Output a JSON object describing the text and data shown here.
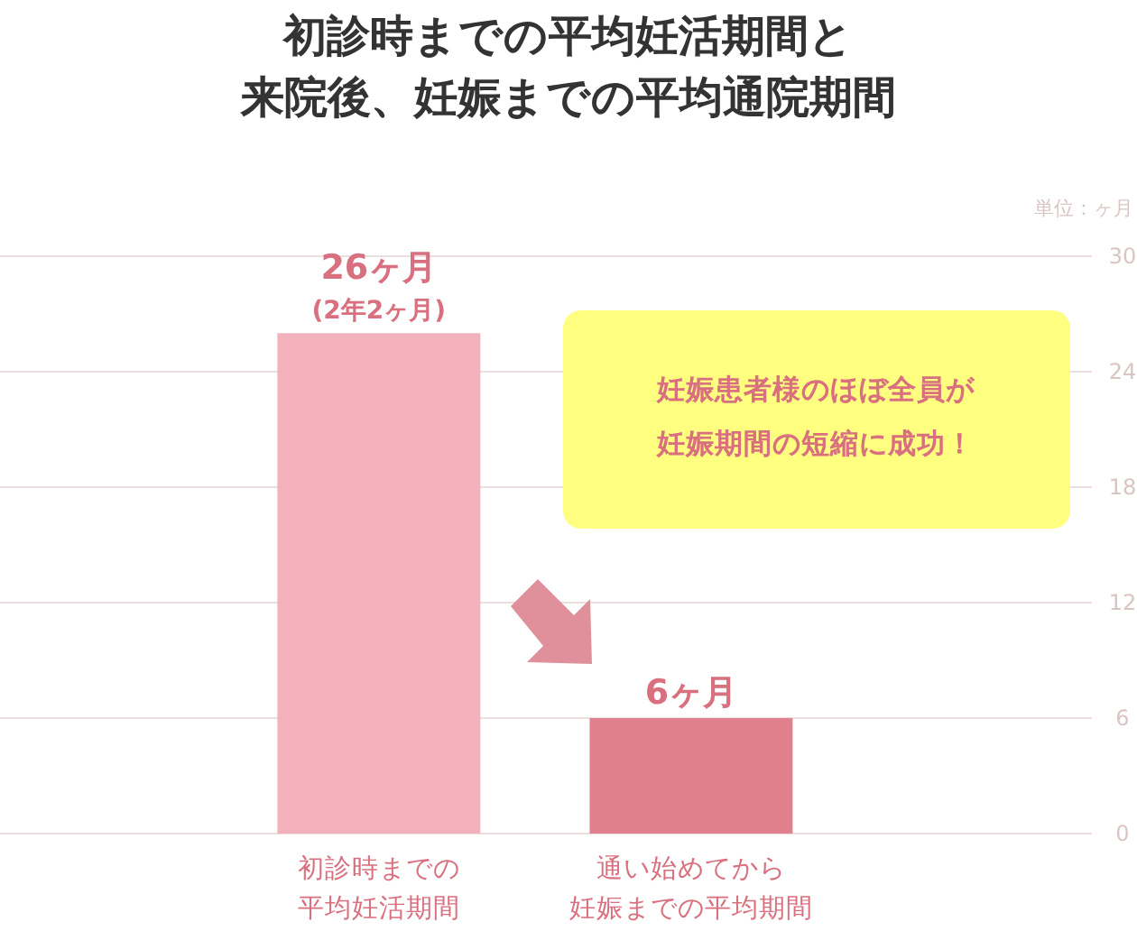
{
  "chart_data": {
    "type": "bar",
    "title": "初診時までの平均妊活期間と来院後、妊娠までの平均通院期間",
    "ylabel": "単位：ヶ月",
    "categories": [
      "初診時までの平均妊活期間",
      "通い始めてから妊娠までの平均期間"
    ],
    "values": [
      26,
      6
    ],
    "colors": [
      "#f3b1bb",
      "#e0808c"
    ],
    "value_labels": [
      "26ヶ月$_{(2年2ヶ月)}$",
      "6ヶ月"
    ],
    "ylim": [
      0,
      30
    ],
    "yticks": [
      0,
      6,
      12,
      18,
      24,
      30
    ],
    "grid": "y",
    "annotations": [
      "妊娠患者様のほぼ全員が妊娠期間の短縮に成功！"
    ]
  }
}
